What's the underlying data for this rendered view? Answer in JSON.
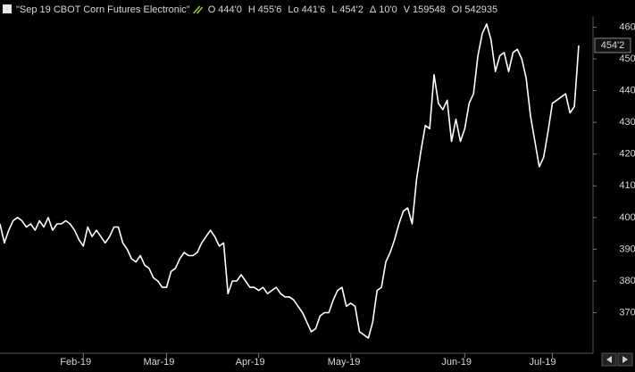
{
  "chart_data": {
    "type": "line",
    "title": "\"Sep 19 CBOT Corn Futures Electronic\"",
    "stats": [
      {
        "label": "O",
        "value": "444'0"
      },
      {
        "label": "H",
        "value": "455'6"
      },
      {
        "label": "Lo",
        "value": "441'6"
      },
      {
        "label": "L",
        "value": "454'2"
      },
      {
        "label": "Δ",
        "value": "10'0"
      },
      {
        "label": "V",
        "value": "159548"
      },
      {
        "label": "OI",
        "value": "542935"
      }
    ],
    "last_label": "454'2",
    "color": "#ffffff",
    "categories": [
      null,
      null,
      null,
      null,
      null,
      null,
      null,
      null,
      null,
      null,
      null,
      null,
      null,
      null,
      null,
      null,
      null,
      null,
      null,
      "Feb-19",
      null,
      null,
      null,
      null,
      null,
      null,
      null,
      null,
      null,
      null,
      null,
      null,
      null,
      null,
      null,
      null,
      null,
      null,
      "Mar-19",
      null,
      null,
      null,
      null,
      null,
      null,
      null,
      null,
      null,
      null,
      null,
      null,
      null,
      null,
      null,
      null,
      null,
      null,
      null,
      null,
      "Apr-19",
      null,
      null,
      null,
      null,
      null,
      null,
      null,
      null,
      null,
      null,
      null,
      null,
      null,
      null,
      null,
      null,
      null,
      null,
      null,
      null,
      "May-19",
      null,
      null,
      null,
      null,
      null,
      null,
      null,
      null,
      null,
      null,
      null,
      null,
      null,
      null,
      null,
      null,
      null,
      null,
      null,
      null,
      null,
      null,
      null,
      null,
      null,
      "Jun-19",
      null,
      null,
      null,
      null,
      null,
      null,
      null,
      null,
      null,
      null,
      null,
      null,
      null,
      null,
      null,
      null,
      null,
      null,
      null,
      "Jul-19",
      null,
      null,
      null,
      null,
      null,
      null
    ],
    "values": [
      398,
      392,
      396,
      399,
      400,
      399,
      397,
      398,
      396,
      399,
      397,
      400,
      396,
      398,
      398,
      399,
      398,
      396,
      393,
      391,
      397,
      394,
      396,
      394,
      392,
      394,
      397,
      397,
      392,
      390,
      387,
      386,
      388,
      385,
      384,
      381,
      380,
      378,
      378,
      383,
      384,
      387,
      389,
      388,
      388,
      389,
      392,
      394,
      396,
      394,
      391,
      392,
      376,
      380,
      380,
      382,
      380,
      378,
      378,
      377,
      378,
      376,
      377,
      378,
      376,
      375,
      375,
      374,
      372,
      370,
      367,
      364,
      365,
      369,
      370,
      370,
      374,
      377,
      378,
      372,
      373,
      372,
      364,
      363,
      362,
      367,
      377,
      378,
      386,
      389,
      393,
      398,
      402,
      403,
      398,
      412,
      421,
      429,
      428,
      445,
      436,
      434,
      437,
      424,
      431,
      424,
      428,
      436,
      439,
      451,
      458,
      461,
      456,
      446,
      451,
      452,
      446,
      452,
      453,
      450,
      444,
      432,
      424,
      416,
      419,
      427,
      436,
      437,
      438,
      439,
      433,
      435,
      454.25
    ],
    "ylim": [
      357.5,
      463.5
    ],
    "yticks": [
      {
        "value": 370,
        "label": "370'0"
      },
      {
        "value": 380,
        "label": "380'0"
      },
      {
        "value": 390,
        "label": "390'0"
      },
      {
        "value": 400,
        "label": "400'0"
      },
      {
        "value": 410,
        "label": "410'0"
      },
      {
        "value": 420,
        "label": "420'0"
      },
      {
        "value": 430,
        "label": "430'0"
      },
      {
        "value": 440,
        "label": "440'0"
      },
      {
        "value": 450,
        "label": "450'0"
      },
      {
        "value": 460,
        "label": "460'0"
      }
    ],
    "axis_side": "right"
  }
}
